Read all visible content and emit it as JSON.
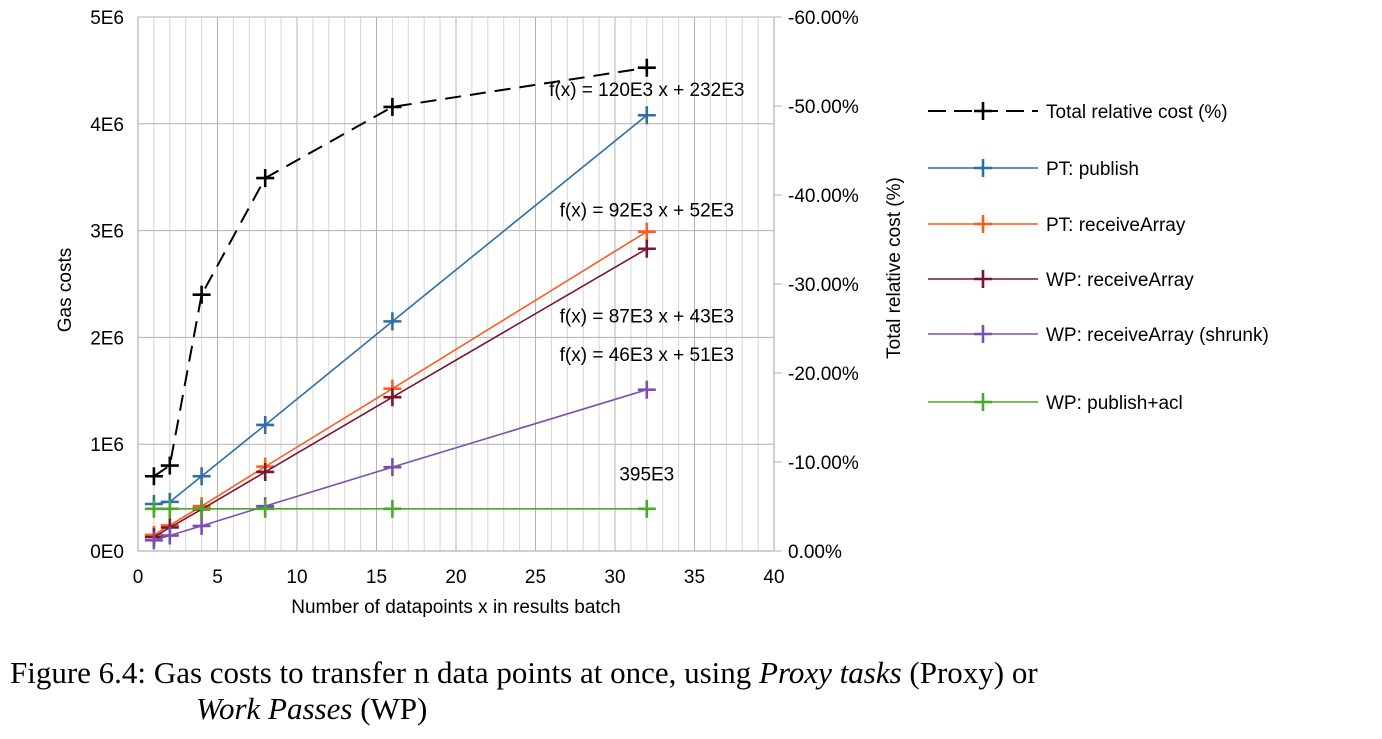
{
  "chart_data": {
    "type": "line",
    "x": [
      1,
      2,
      4,
      8,
      16,
      32
    ],
    "xlabel": "Number of datapoints x in results batch",
    "xlim": [
      0,
      40
    ],
    "xticks": [
      "0",
      "5",
      "10",
      "15",
      "20",
      "25",
      "30",
      "35",
      "40"
    ],
    "xtick_values": [
      0,
      5,
      10,
      15,
      20,
      25,
      30,
      35,
      40
    ],
    "ylabel": "Gas costs",
    "ylim": [
      0,
      5000000
    ],
    "yticks": [
      "0E0",
      "1E6",
      "2E6",
      "3E6",
      "4E6",
      "5E6"
    ],
    "ytick_values": [
      0,
      1000000,
      2000000,
      3000000,
      4000000,
      5000000
    ],
    "y2label": "Total relative cost (%)",
    "y2lim": [
      0,
      -60
    ],
    "y2ticks": [
      "0.00%",
      "-10.00%",
      "-20.00%",
      "-30.00%",
      "-40.00%",
      "-50.00%",
      "-60.00%"
    ],
    "y2tick_values": [
      0,
      -10,
      -20,
      -30,
      -40,
      -50,
      -60
    ],
    "grid": true,
    "legend_position": "right",
    "series": [
      {
        "name": "Total relative cost (%)",
        "axis": "right",
        "color": "#000000",
        "dash": true,
        "values": [
          -8.4,
          -9.6,
          -28.8,
          -41.9,
          -49.9,
          -54.3
        ]
      },
      {
        "name": "PT: publish",
        "axis": "left",
        "color": "#2e6ea6",
        "values": [
          440000,
          460000,
          700000,
          1180000,
          2150000,
          4080000
        ]
      },
      {
        "name": "PT: receiveArray",
        "axis": "left",
        "color": "#ff5a1f",
        "values": [
          150000,
          240000,
          420000,
          790000,
          1520000,
          2990000
        ]
      },
      {
        "name": "WP: receiveArray",
        "axis": "left",
        "color": "#7a1530",
        "values": [
          130000,
          220000,
          390000,
          740000,
          1440000,
          2830000
        ]
      },
      {
        "name": "WP: receiveArray (shrunk)",
        "axis": "left",
        "color": "#7a4fb0",
        "values": [
          100000,
          145000,
          235000,
          420000,
          785000,
          1510000
        ]
      },
      {
        "name": "WP: publish+acl",
        "axis": "left",
        "color": "#4ca82a",
        "values": [
          395000,
          395000,
          395000,
          395000,
          395000,
          395000
        ]
      }
    ],
    "annotations": [
      {
        "text": "f(x) = 120E3 x + 232E3",
        "anchor_x": 32,
        "anchor_y": 4260000
      },
      {
        "text": "f(x) = 92E3 x + 52E3",
        "anchor_x": 32,
        "anchor_y": 3130000
      },
      {
        "text": "f(x) = 87E3 x + 43E3",
        "anchor_x": 32,
        "anchor_y": 2140000
      },
      {
        "text": "f(x) = 46E3 x + 51E3",
        "anchor_x": 32,
        "anchor_y": 1780000
      },
      {
        "text": "395E3",
        "anchor_x": 32,
        "anchor_y": 660000
      }
    ]
  },
  "caption": {
    "label": "Figure 6.4:",
    "text_1": "Gas costs to transfer n data points at once, using",
    "em_1": "Proxy tasks",
    "text_2": "(Proxy) or",
    "em_2": "Work Passes",
    "text_3": "(WP)"
  }
}
